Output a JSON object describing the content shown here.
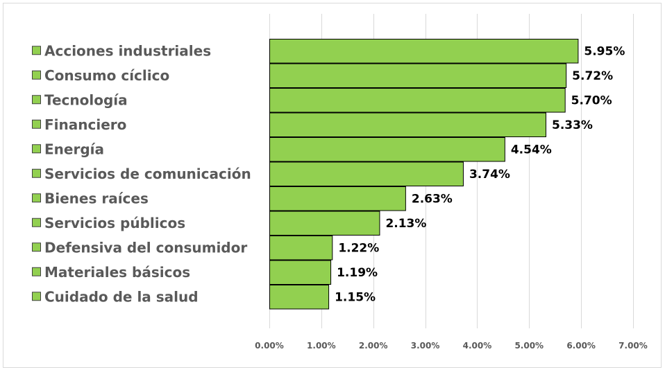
{
  "chart_data": {
    "type": "bar",
    "orientation": "horizontal",
    "title": "",
    "xlabel": "",
    "ylabel": "",
    "categories": [
      "Acciones industriales",
      "Consumo cíclico",
      "Tecnología",
      "Financiero",
      "Energía",
      "Servicios de comunicación",
      "Bienes raíces",
      "Servicios públicos",
      "Defensiva del consumidor",
      "Materiales básicos",
      "Cuidado de la salud"
    ],
    "values": [
      5.95,
      5.72,
      5.7,
      5.33,
      4.54,
      3.74,
      2.63,
      2.13,
      1.22,
      1.19,
      1.15
    ],
    "value_labels": [
      "5.95%",
      "5.72%",
      "5.70%",
      "5.33%",
      "4.54%",
      "3.74%",
      "2.63%",
      "2.13%",
      "1.22%",
      "1.19%",
      "1.15%"
    ],
    "xlim": [
      0,
      7
    ],
    "xticks": [
      0,
      1,
      2,
      3,
      4,
      5,
      6,
      7
    ],
    "xtick_labels": [
      "0.00%",
      "1.00%",
      "2.00%",
      "3.00%",
      "4.00%",
      "5.00%",
      "6.00%",
      "7.00%"
    ],
    "grid": "vertical",
    "legend": "left",
    "colors": {
      "bar_fill": "#92d050",
      "bar_stroke": "#000000",
      "gridline": "#d9d9d9",
      "label_text": "#595959",
      "value_text": "#000000"
    }
  }
}
